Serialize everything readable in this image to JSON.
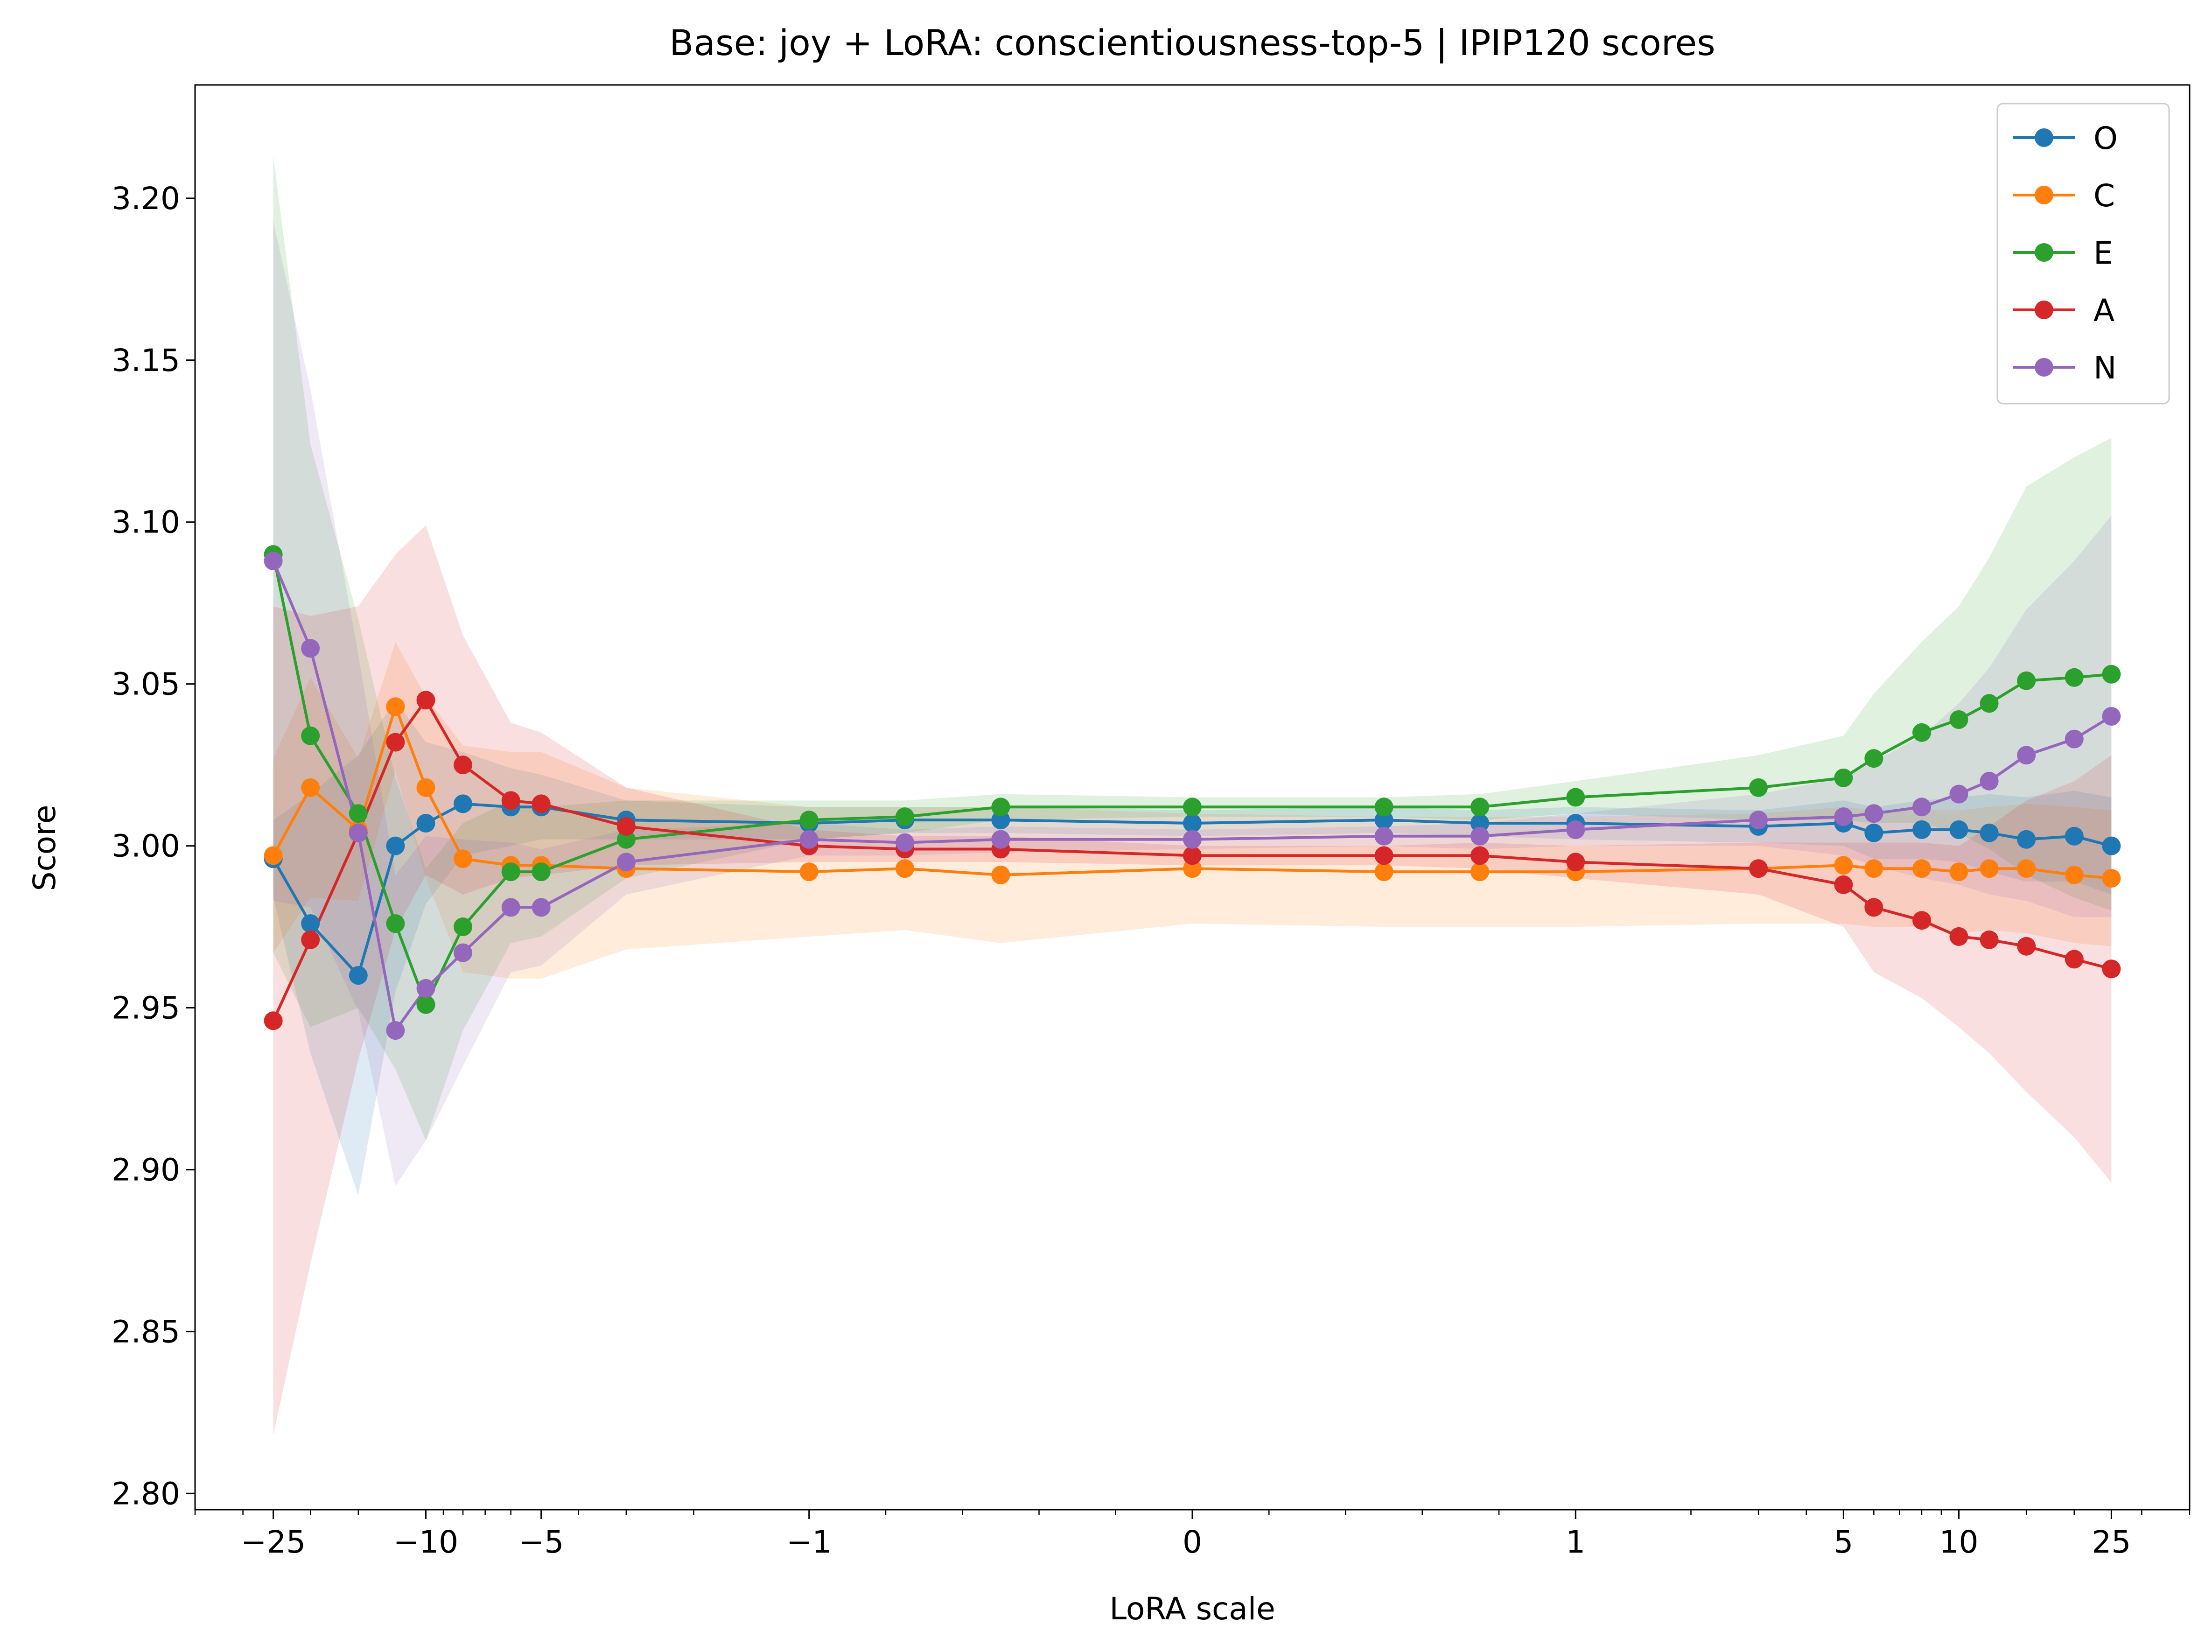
{
  "chart_data": {
    "type": "line",
    "title": "Base: joy + LoRA: conscientiousness-top-5 | IPIP120 scores",
    "xlabel": "LoRA scale",
    "ylabel": "Score",
    "x_scale": "symlog",
    "ylim": [
      2.795,
      3.235
    ],
    "xlim": [
      -40,
      40
    ],
    "grid": false,
    "legend_position": "top-right",
    "xticks": [
      {
        "value": -25,
        "label": "−25"
      },
      {
        "value": -10,
        "label": "−10"
      },
      {
        "value": -5,
        "label": "−5"
      },
      {
        "value": -1,
        "label": "−1"
      },
      {
        "value": 0,
        "label": "0"
      },
      {
        "value": 1,
        "label": "1"
      },
      {
        "value": 5,
        "label": "5"
      },
      {
        "value": 10,
        "label": "10"
      },
      {
        "value": 25,
        "label": "25"
      }
    ],
    "yticks": [
      {
        "value": 2.8,
        "label": "2.80"
      },
      {
        "value": 2.85,
        "label": "2.85"
      },
      {
        "value": 2.9,
        "label": "2.90"
      },
      {
        "value": 2.95,
        "label": "2.95"
      },
      {
        "value": 3.0,
        "label": "3.00"
      },
      {
        "value": 3.05,
        "label": "3.05"
      },
      {
        "value": 3.1,
        "label": "3.10"
      },
      {
        "value": 3.15,
        "label": "3.15"
      },
      {
        "value": 3.2,
        "label": "3.20"
      }
    ],
    "x": [
      -25,
      -20,
      -15,
      -12,
      -10,
      -8,
      -6,
      -5,
      -3,
      -1,
      -0.75,
      -0.5,
      0,
      0.5,
      0.75,
      1,
      3,
      5,
      6,
      8,
      10,
      12,
      15,
      20,
      25
    ],
    "series": [
      {
        "name": "O",
        "color": "#1f77b4",
        "values": [
          2.996,
          2.976,
          2.96,
          3.0,
          3.007,
          3.013,
          3.012,
          3.012,
          3.008,
          3.007,
          3.008,
          3.008,
          3.007,
          3.008,
          3.007,
          3.007,
          3.006,
          3.007,
          3.004,
          3.005,
          3.005,
          3.004,
          3.002,
          3.003,
          3.0
        ],
        "band": [
          0.012,
          0.04,
          0.068,
          0.045,
          0.025,
          0.016,
          0.012,
          0.01,
          0.006,
          0.005,
          0.004,
          0.004,
          0.004,
          0.004,
          0.004,
          0.005,
          0.005,
          0.007,
          0.008,
          0.009,
          0.01,
          0.012,
          0.013,
          0.014,
          0.015
        ]
      },
      {
        "name": "C",
        "color": "#ff7f0e",
        "values": [
          2.997,
          3.018,
          3.005,
          3.043,
          3.018,
          2.996,
          2.994,
          2.994,
          2.993,
          2.992,
          2.993,
          2.991,
          2.993,
          2.992,
          2.992,
          2.992,
          2.993,
          2.994,
          2.993,
          2.993,
          2.992,
          2.993,
          2.993,
          2.991,
          2.99
        ],
        "band": [
          0.03,
          0.034,
          0.022,
          0.02,
          0.028,
          0.035,
          0.035,
          0.035,
          0.025,
          0.02,
          0.019,
          0.021,
          0.017,
          0.017,
          0.017,
          0.017,
          0.017,
          0.018,
          0.018,
          0.018,
          0.019,
          0.019,
          0.02,
          0.021,
          0.021
        ]
      },
      {
        "name": "E",
        "color": "#2ca02c",
        "values": [
          3.09,
          3.034,
          3.01,
          2.976,
          2.951,
          2.975,
          2.992,
          2.992,
          3.002,
          3.008,
          3.009,
          3.012,
          3.012,
          3.012,
          3.012,
          3.015,
          3.018,
          3.021,
          3.027,
          3.035,
          3.039,
          3.044,
          3.051,
          3.052,
          3.053
        ],
        "band": [
          0.123,
          0.09,
          0.06,
          0.045,
          0.042,
          0.032,
          0.022,
          0.02,
          0.012,
          0.006,
          0.005,
          0.004,
          0.003,
          0.003,
          0.004,
          0.005,
          0.01,
          0.013,
          0.02,
          0.028,
          0.035,
          0.045,
          0.06,
          0.068,
          0.073
        ]
      },
      {
        "name": "A",
        "color": "#d62728",
        "values": [
          2.946,
          2.971,
          3.004,
          3.032,
          3.045,
          3.025,
          3.014,
          3.013,
          3.006,
          3.0,
          2.999,
          2.999,
          2.997,
          2.997,
          2.997,
          2.995,
          2.993,
          2.988,
          2.981,
          2.977,
          2.972,
          2.971,
          2.969,
          2.965,
          2.962
        ],
        "band": [
          0.128,
          0.1,
          0.07,
          0.058,
          0.054,
          0.04,
          0.024,
          0.022,
          0.012,
          0.005,
          0.004,
          0.004,
          0.003,
          0.003,
          0.004,
          0.005,
          0.008,
          0.013,
          0.02,
          0.024,
          0.028,
          0.035,
          0.045,
          0.055,
          0.066
        ]
      },
      {
        "name": "N",
        "color": "#9467bd",
        "values": [
          3.088,
          3.061,
          3.004,
          2.943,
          2.956,
          2.967,
          2.981,
          2.981,
          2.995,
          3.002,
          3.001,
          3.002,
          3.002,
          3.003,
          3.003,
          3.005,
          3.008,
          3.009,
          3.01,
          3.012,
          3.016,
          3.02,
          3.028,
          3.033,
          3.04
        ],
        "band": [
          0.105,
          0.08,
          0.055,
          0.048,
          0.047,
          0.035,
          0.02,
          0.018,
          0.01,
          0.005,
          0.004,
          0.004,
          0.003,
          0.003,
          0.004,
          0.005,
          0.008,
          0.012,
          0.016,
          0.022,
          0.028,
          0.035,
          0.045,
          0.055,
          0.062
        ]
      }
    ]
  }
}
